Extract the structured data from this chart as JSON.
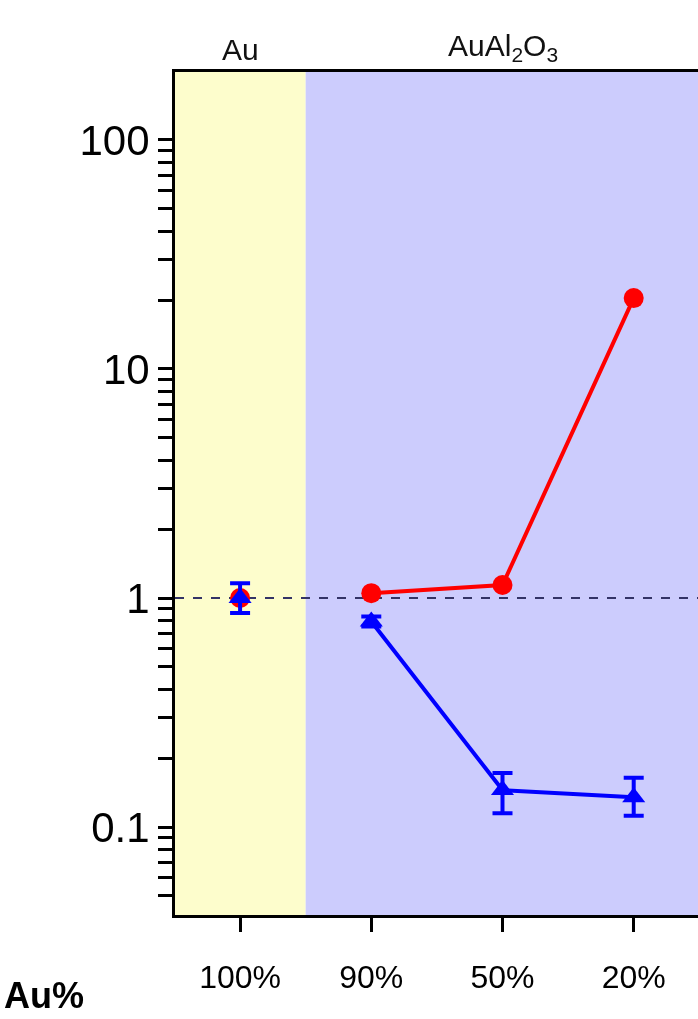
{
  "chart_data": {
    "type": "line",
    "categories": [
      "100%",
      "90%",
      "50%",
      "20%"
    ],
    "xlabel": "Au%",
    "log": "y",
    "ylim": [
      0.0413,
      198
    ],
    "yticks": [
      {
        "value": 0.05,
        "label": null
      },
      {
        "value": 0.06,
        "label": null
      },
      {
        "value": 0.07,
        "label": null
      },
      {
        "value": 0.08,
        "label": null
      },
      {
        "value": 0.09,
        "label": null
      },
      0.1,
      {
        "value": 0.2,
        "label": null
      },
      {
        "value": 0.3,
        "label": null
      },
      {
        "value": 0.4,
        "label": null
      },
      {
        "value": 0.5,
        "label": null
      },
      {
        "value": 0.6,
        "label": null
      },
      {
        "value": 0.7,
        "label": null
      },
      {
        "value": 0.8,
        "label": null
      },
      {
        "value": 0.9,
        "label": null
      },
      1,
      {
        "value": 2,
        "label": null
      },
      {
        "value": 3,
        "label": null
      },
      {
        "value": 4,
        "label": null
      },
      {
        "value": 5,
        "label": null
      },
      {
        "value": 6,
        "label": null
      },
      {
        "value": 7,
        "label": null
      },
      {
        "value": 8,
        "label": null
      },
      {
        "value": 9,
        "label": null
      },
      10,
      {
        "value": 20,
        "label": null
      },
      {
        "value": 30,
        "label": null
      },
      {
        "value": 40,
        "label": null
      },
      {
        "value": 50,
        "label": null
      },
      {
        "value": 60,
        "label": null
      },
      {
        "value": 70,
        "label": null
      },
      {
        "value": 80,
        "label": null
      },
      {
        "value": 90,
        "label": null
      },
      100
    ],
    "grid": false,
    "series": [
      {
        "type": "scatter",
        "color": "#ff0000",
        "marker": "circle",
        "values": [
          1.0,
          null,
          null,
          null
        ]
      },
      {
        "type": "line",
        "color": "#ff0000",
        "marker": "circle",
        "values": [
          null,
          1.05,
          1.14,
          20.4
        ]
      },
      {
        "type": "scatter",
        "color": "#0000ff",
        "marker": "triangle",
        "values": [
          1.0,
          null,
          null,
          null
        ],
        "errors": [
          [
            0.86,
            1.16
          ],
          null,
          null,
          null
        ]
      },
      {
        "type": "line",
        "color": "#0000ff",
        "marker": "triangle",
        "values": [
          null,
          0.79,
          0.145,
          0.135
        ],
        "errors": [
          null,
          [
            0.75,
            0.83
          ],
          [
            0.115,
            0.172
          ],
          [
            0.112,
            0.164
          ]
        ]
      }
    ],
    "ref_lines": [
      {
        "axis": "y",
        "value": 1,
        "color": "#333366",
        "line_style": "dashed"
      }
    ],
    "bands": [
      {
        "axis": "x",
        "from": "100%",
        "to": "100%",
        "label": "Au",
        "color": "#fdfdcc"
      },
      {
        "axis": "x",
        "from": "90%",
        "to": "20%",
        "label": "AuAl$_{2}$O$_{3}$",
        "color": "#ccccfd"
      }
    ]
  }
}
